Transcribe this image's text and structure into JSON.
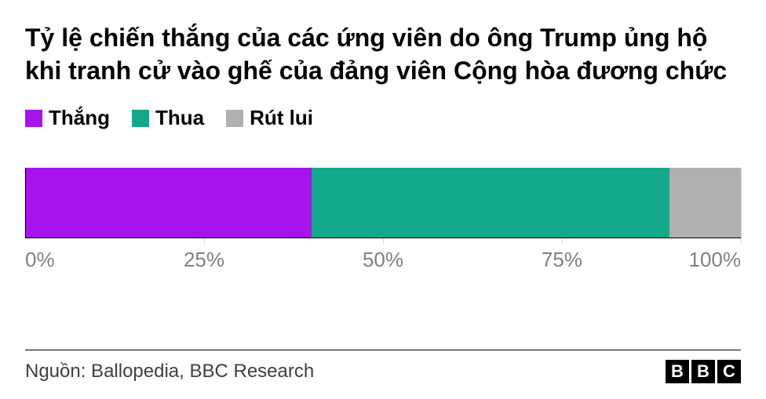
{
  "title": "Tỷ lệ chiến thắng của các ứng viên do ông Trump ủng hộ khi tranh cử vào ghế của đảng viên Cộng hòa đương chức",
  "legend": [
    {
      "label": "Thắng",
      "color": "#a613ec"
    },
    {
      "label": "Thua",
      "color": "#12a88a"
    },
    {
      "label": "Rút lui",
      "color": "#b0b0b0"
    }
  ],
  "chart": {
    "type": "stacked-bar-horizontal",
    "segments": [
      {
        "name": "Thắng",
        "value": 40,
        "color": "#a613ec"
      },
      {
        "name": "Thua",
        "value": 50,
        "color": "#12a88a"
      },
      {
        "name": "Rút lui",
        "value": 10,
        "color": "#b0b0b0"
      }
    ],
    "xlim": [
      0,
      100
    ],
    "ticks": [
      0,
      25,
      50,
      75,
      100
    ],
    "tick_labels": [
      "0%",
      "25%",
      "50%",
      "75%",
      "100%"
    ],
    "grid_color": "#d9d9d9",
    "background_color": "#ffffff",
    "axis_label_color": "#808080",
    "axis_label_fontsize": 26,
    "title_fontsize": 32,
    "legend_fontsize": 26
  },
  "footer": {
    "source": "Nguồn: Ballopedia, BBC Research",
    "logo_letters": [
      "B",
      "B",
      "C"
    ]
  }
}
